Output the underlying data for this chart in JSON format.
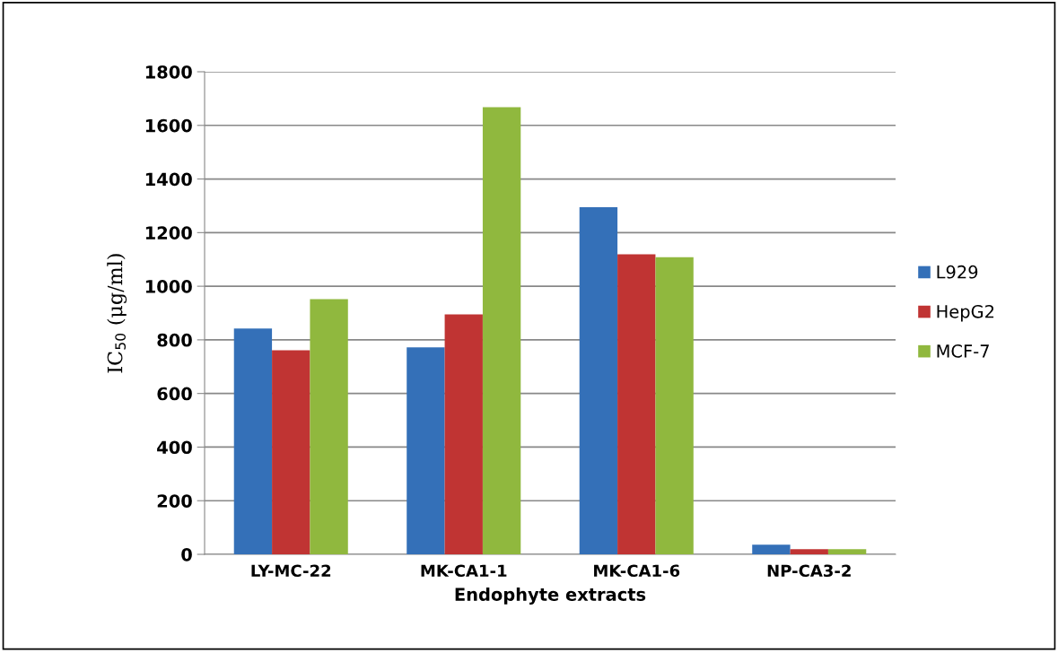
{
  "chart_data": {
    "type": "bar",
    "xlabel": "Endophyte extracts",
    "ylabel": "IC$_{50}$ (μg/ml)",
    "categories": [
      "LY-MC-22",
      "MK-CA1-1",
      "MK-CA1-6",
      "NP-CA3-2"
    ],
    "series": [
      {
        "name": "L929",
        "color": "#3470b8",
        "values": [
          842,
          772,
          1295,
          36
        ]
      },
      {
        "name": "HepG2",
        "color": "#c03433",
        "values": [
          761,
          895,
          1119,
          19
        ]
      },
      {
        "name": "MCF-7",
        "color": "#90b83e",
        "values": [
          952,
          1668,
          1108,
          19
        ]
      }
    ],
    "ylim": [
      0,
      1800
    ],
    "yticks": [
      0,
      200,
      400,
      600,
      800,
      1000,
      1200,
      1400,
      1600,
      1800
    ],
    "grid": "y",
    "legend": "right"
  }
}
